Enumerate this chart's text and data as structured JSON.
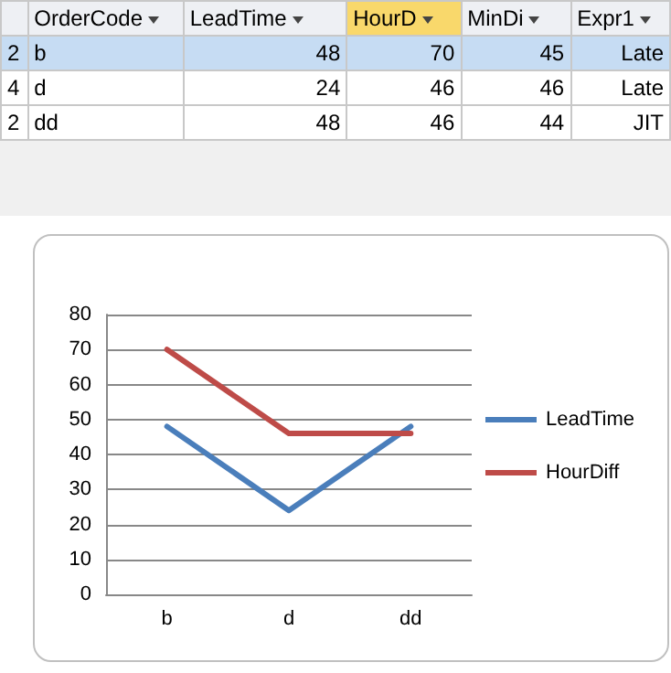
{
  "chart_data": [
    {
      "type": "other",
      "annotations": [
        "OrderCode",
        "LeadTime",
        "HourD",
        "MinDi",
        "Expr1",
        "2",
        "b",
        "48",
        "70",
        "45",
        "Late",
        "4",
        "d",
        "24",
        "46",
        "46",
        "Late",
        "2",
        "dd",
        "48",
        "46",
        "44",
        "JIT"
      ]
    },
    {
      "type": "line",
      "categories": [
        "b",
        "d",
        "dd"
      ],
      "series": [
        {
          "name": "LeadTime",
          "color": "#4a7ebb",
          "values": [
            48,
            24,
            48
          ]
        },
        {
          "name": "HourDiff",
          "color": "#be4b48",
          "values": [
            70,
            46,
            46
          ]
        }
      ],
      "ylim": [
        0,
        80
      ],
      "yticks": [
        0,
        10,
        20,
        30,
        40,
        50,
        60,
        70,
        80
      ],
      "grid": "y",
      "legend": "right",
      "marker": "none",
      "line_style": "solid"
    }
  ]
}
